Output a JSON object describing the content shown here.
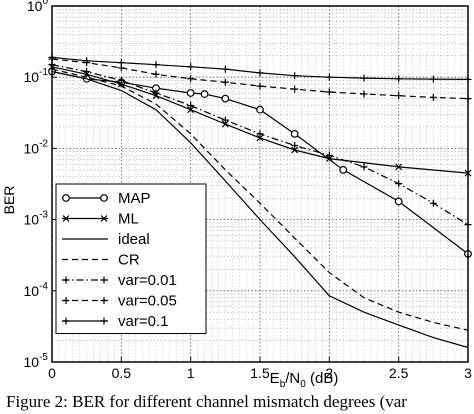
{
  "chart_data": {
    "type": "line",
    "title": "",
    "xlabel_main": "E",
    "xlabel_sub1": "b",
    "xlabel_mid": "/N",
    "xlabel_sub2": "0",
    "xlabel_unit": " (dB)",
    "ylabel": "BER",
    "xlim": [
      0,
      3
    ],
    "ylim": [
      1e-05,
      1
    ],
    "yscale": "log",
    "grid": true,
    "legend_position": "bottom-left",
    "x_ticks": [
      "0",
      "0.5",
      "1",
      "1.5",
      "2",
      "2.5",
      "3"
    ],
    "y_ticks": [
      {
        "base": "10",
        "exp": "0"
      },
      {
        "base": "10",
        "exp": "-1"
      },
      {
        "base": "10",
        "exp": "-2"
      },
      {
        "base": "10",
        "exp": "-3"
      },
      {
        "base": "10",
        "exp": "-4"
      },
      {
        "base": "10",
        "exp": "-5"
      }
    ],
    "series": [
      {
        "name": "MAP",
        "style": "solid",
        "marker": "circle",
        "x": [
          0,
          0.25,
          0.5,
          0.75,
          1.0,
          1.1,
          1.25,
          1.5,
          1.75,
          2.1,
          2.5,
          3.0
        ],
        "y": [
          0.12,
          0.095,
          0.085,
          0.07,
          0.06,
          0.058,
          0.05,
          0.035,
          0.016,
          0.005,
          0.0018,
          0.00033
        ]
      },
      {
        "name": "ML",
        "style": "solid",
        "marker": "x",
        "x": [
          0,
          0.25,
          0.5,
          0.75,
          1.0,
          1.25,
          1.5,
          1.75,
          2.0,
          2.5,
          3.0
        ],
        "y": [
          0.14,
          0.11,
          0.08,
          0.055,
          0.035,
          0.022,
          0.014,
          0.0095,
          0.0072,
          0.0055,
          0.0045
        ]
      },
      {
        "name": "ideal",
        "style": "solid",
        "marker": "none",
        "x": [
          0,
          0.25,
          0.5,
          0.75,
          1.0,
          1.25,
          1.5,
          1.75,
          2.0,
          2.25,
          2.5,
          2.75,
          3.0
        ],
        "y": [
          0.12,
          0.095,
          0.065,
          0.035,
          0.012,
          0.0035,
          0.001,
          0.0003,
          8.5e-05,
          5e-05,
          3.3e-05,
          2.2e-05,
          1.6e-05
        ]
      },
      {
        "name": "CR",
        "style": "dashed",
        "marker": "none",
        "x": [
          0,
          0.25,
          0.5,
          0.75,
          1.0,
          1.25,
          1.5,
          1.75,
          2.0,
          2.25,
          2.5,
          2.75,
          3.0
        ],
        "y": [
          0.13,
          0.1,
          0.075,
          0.042,
          0.016,
          0.005,
          0.0017,
          0.00055,
          0.00018,
          8e-05,
          5e-05,
          3.6e-05,
          2.8e-05
        ]
      },
      {
        "name": "var=0.01",
        "style": "dashdot",
        "marker": "plus",
        "x": [
          0,
          0.25,
          0.5,
          0.75,
          1.0,
          1.25,
          1.5,
          1.75,
          2.0,
          2.25,
          2.5,
          2.75,
          3.0
        ],
        "y": [
          0.15,
          0.12,
          0.09,
          0.06,
          0.04,
          0.025,
          0.016,
          0.011,
          0.008,
          0.0055,
          0.0032,
          0.0017,
          0.00085
        ]
      },
      {
        "name": "var=0.05",
        "style": "dashed",
        "marker": "plus",
        "x": [
          0,
          0.25,
          0.5,
          0.75,
          1.0,
          1.25,
          1.5,
          1.75,
          2.0,
          2.25,
          2.5,
          2.75,
          3.0
        ],
        "y": [
          0.18,
          0.16,
          0.135,
          0.11,
          0.095,
          0.085,
          0.075,
          0.068,
          0.062,
          0.058,
          0.055,
          0.052,
          0.05
        ]
      },
      {
        "name": "var=0.1",
        "style": "solid",
        "marker": "plus",
        "x": [
          0,
          0.25,
          0.5,
          0.75,
          1.0,
          1.25,
          1.5,
          1.75,
          2.0,
          2.25,
          2.5,
          2.75,
          3.0
        ],
        "y": [
          0.19,
          0.17,
          0.16,
          0.15,
          0.14,
          0.13,
          0.115,
          0.105,
          0.1,
          0.097,
          0.095,
          0.094,
          0.093
        ]
      }
    ]
  },
  "caption": "Figure 2: BER for different channel mismatch degrees (var"
}
